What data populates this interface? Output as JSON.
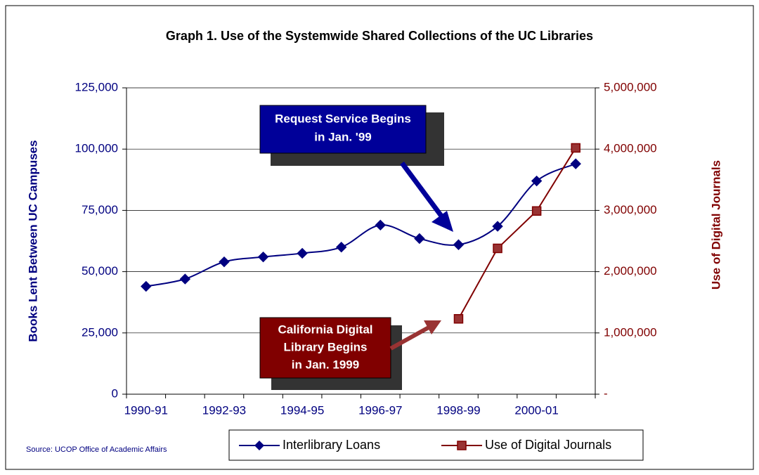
{
  "chart_data": {
    "type": "line",
    "title": "Graph 1. Use of the Systemwide Shared Collections of the UC Libraries",
    "y_label": "Books Lent Between UC Campuses",
    "y2_label": "Use of Digital Journals",
    "source": "Source:  UCOP Office of  Academic Affairs",
    "categories": [
      "1990-91",
      null,
      "1992-93",
      null,
      "1994-95",
      null,
      "1996-97",
      null,
      "1998-99",
      null,
      "2000-01",
      null
    ],
    "series": [
      {
        "name": "Interlibrary Loans",
        "color": "#000080",
        "marker": "diamond",
        "smooth": true,
        "values": [
          44000,
          47000,
          54000,
          56000,
          57500,
          60000,
          69000,
          63500,
          61000,
          68500,
          87000,
          94000
        ]
      },
      {
        "name": "Use of Digital Journals",
        "color": "#800000",
        "marker": "square",
        "smooth": false,
        "axis": "y2",
        "values": [
          null,
          null,
          null,
          null,
          null,
          null,
          null,
          null,
          1230000,
          2380000,
          2990000,
          4020000
        ]
      }
    ],
    "ylim": [
      0,
      125000
    ],
    "yticks": [
      0,
      {
        "value": 25000,
        "label": "25,000"
      },
      {
        "value": 50000,
        "label": "50,000"
      },
      {
        "value": 75000,
        "label": "75,000"
      },
      {
        "value": 100000,
        "label": "100,000"
      },
      {
        "value": 125000,
        "label": "125,000"
      }
    ],
    "y2lim": [
      0,
      5000000
    ],
    "y2ticks": [
      {
        "value": 0,
        "label": "-"
      },
      {
        "value": 1000000,
        "label": "1,000,000"
      },
      {
        "value": 2000000,
        "label": "2,000,000"
      },
      {
        "value": 3000000,
        "label": "3,000,000"
      },
      {
        "value": 4000000,
        "label": "4,000,000"
      },
      {
        "value": 5000000,
        "label": "5,000,000"
      }
    ],
    "grid": true,
    "annotations": [
      {
        "lines": [
          "Request Service Begins",
          "in Jan. '99"
        ]
      },
      {
        "lines": [
          "California Digital",
          "Library Begins",
          "in Jan. 1999"
        ]
      }
    ]
  }
}
